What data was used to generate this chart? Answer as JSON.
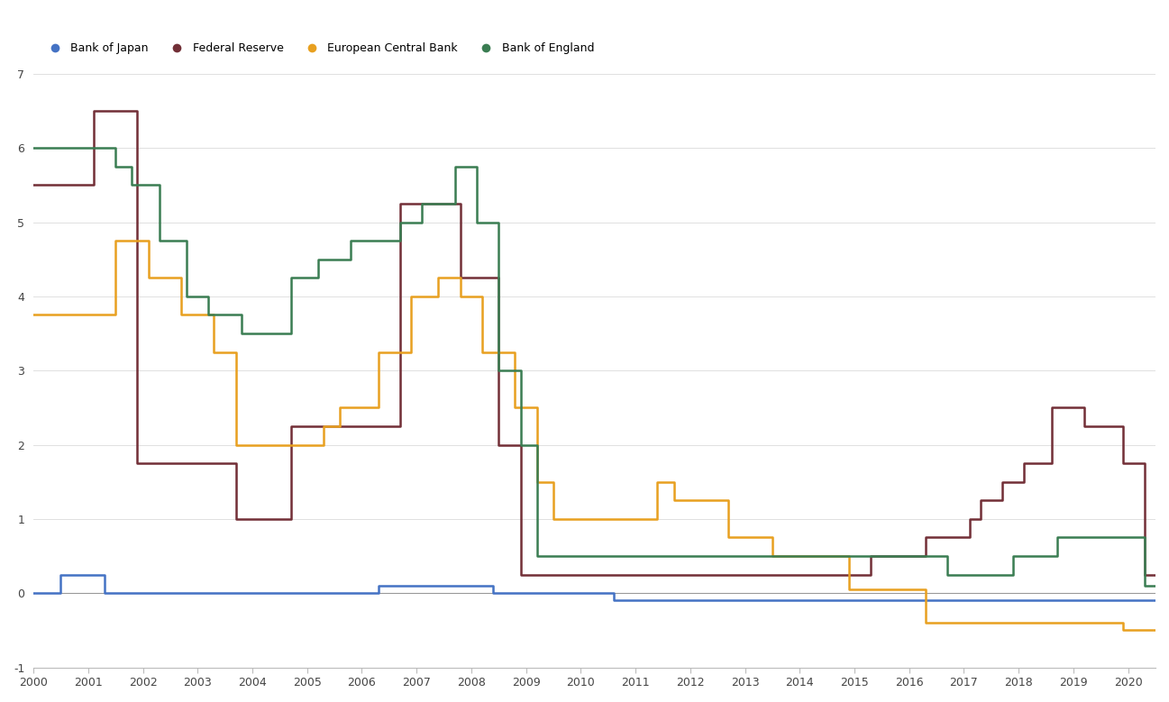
{
  "legend": [
    "Bank of Japan",
    "Federal Reserve",
    "European Central Bank",
    "Bank of England"
  ],
  "colors": {
    "boj": "#4472C4",
    "fed": "#722F37",
    "ecb": "#E8A020",
    "boe": "#3A7D52"
  },
  "ylim": [
    -1,
    7
  ],
  "yticks": [
    -1,
    0,
    1,
    2,
    3,
    4,
    5,
    6,
    7
  ],
  "xlim": [
    2000,
    2020.5
  ],
  "xticks": [
    2000,
    2001,
    2002,
    2003,
    2004,
    2005,
    2006,
    2007,
    2008,
    2009,
    2010,
    2011,
    2012,
    2013,
    2014,
    2015,
    2016,
    2017,
    2018,
    2019,
    2020
  ],
  "boj_steps": {
    "x": [
      2000.0,
      2000.5,
      2001.3,
      2006.3,
      2008.4,
      2010.6,
      2016.2,
      2020.5
    ],
    "y": [
      0.0,
      0.25,
      0.0,
      0.1,
      0.0,
      -0.1,
      -0.1,
      -0.1
    ]
  },
  "fed_steps": {
    "x": [
      2000.0,
      2001.1,
      2001.9,
      2003.7,
      2004.7,
      2006.7,
      2007.8,
      2008.5,
      2008.9,
      2015.3,
      2015.5,
      2016.3,
      2016.7,
      2017.1,
      2017.3,
      2017.7,
      2018.1,
      2018.6,
      2019.2,
      2019.9,
      2020.3,
      2020.5
    ],
    "y": [
      5.5,
      6.5,
      1.75,
      1.0,
      2.25,
      5.25,
      4.25,
      2.0,
      0.25,
      0.5,
      0.5,
      0.75,
      0.75,
      1.0,
      1.25,
      1.5,
      1.75,
      2.5,
      2.25,
      1.75,
      0.25,
      0.25
    ]
  },
  "ecb_steps": {
    "x": [
      2000.0,
      2001.5,
      2002.1,
      2002.7,
      2003.3,
      2003.7,
      2005.3,
      2005.6,
      2006.3,
      2006.9,
      2007.4,
      2007.8,
      2008.2,
      2008.8,
      2009.2,
      2009.5,
      2011.4,
      2011.7,
      2012.7,
      2013.5,
      2014.9,
      2016.3,
      2019.9,
      2020.5
    ],
    "y": [
      3.75,
      4.75,
      4.25,
      3.75,
      3.25,
      2.0,
      2.25,
      2.5,
      3.25,
      4.0,
      4.25,
      4.0,
      3.25,
      2.5,
      1.5,
      1.0,
      1.5,
      1.25,
      0.75,
      0.5,
      0.05,
      -0.4,
      -0.5,
      -0.5
    ]
  },
  "boe_steps": {
    "x": [
      2000.0,
      2001.1,
      2001.5,
      2001.8,
      2002.3,
      2002.8,
      2003.2,
      2003.8,
      2004.7,
      2005.2,
      2005.8,
      2006.7,
      2007.1,
      2007.7,
      2008.1,
      2008.5,
      2008.9,
      2009.2,
      2016.7,
      2017.9,
      2018.7,
      2019.8,
      2020.3,
      2020.5
    ],
    "y": [
      6.0,
      6.0,
      5.75,
      5.5,
      4.75,
      4.0,
      3.75,
      3.5,
      4.25,
      4.5,
      4.75,
      5.0,
      5.25,
      5.75,
      5.0,
      3.0,
      2.0,
      0.5,
      0.25,
      0.5,
      0.75,
      0.75,
      0.1,
      0.1
    ]
  }
}
